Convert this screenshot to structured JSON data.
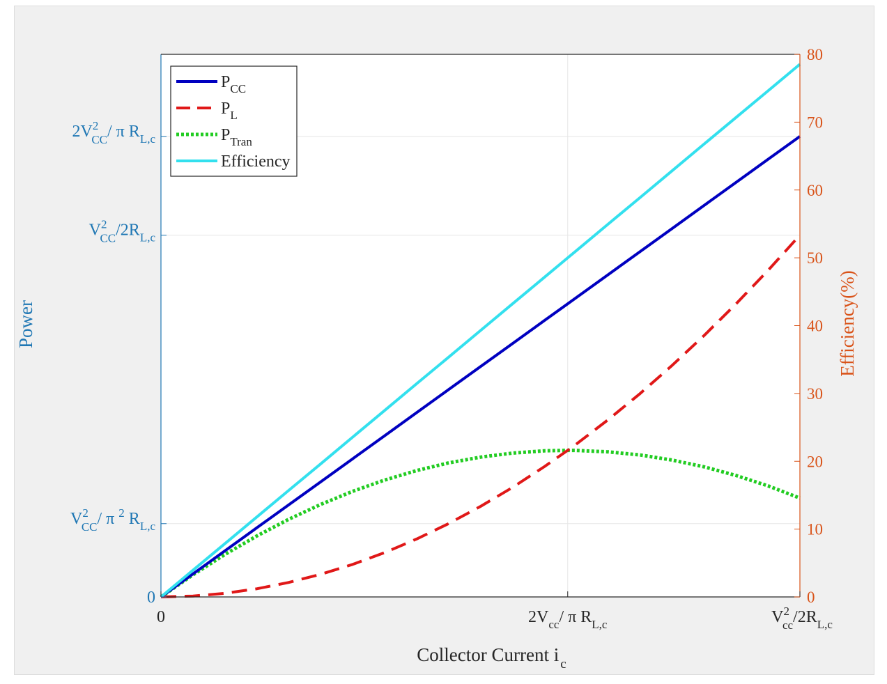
{
  "chart_data": {
    "type": "line",
    "title": "",
    "xlabel": "Collector Current i",
    "xlabel_sub": "c",
    "ylabel_left": "Power",
    "ylabel_right": "Efficiency(%)",
    "xlim": [
      0,
      1
    ],
    "ylim_left": [
      0,
      1
    ],
    "ylim_right": [
      0,
      80
    ],
    "grid": true,
    "legend_position": "top-left",
    "colors": {
      "left_axis": "#1f77b4",
      "right_axis": "#d95319",
      "pcc": "#0000c0",
      "pl": "#e01818",
      "ptran": "#22cc22",
      "efficiency": "#33e0ee"
    },
    "x_ticks": [
      {
        "x": 0,
        "main": "0",
        "sub": ""
      },
      {
        "x": 0.6366,
        "main": "2V",
        "sub": "cc",
        "tail": "/ π R",
        "sub2": "L,c"
      },
      {
        "x": 1,
        "main": "V",
        "sup": "2",
        "sub": "cc",
        "tail": "/2R",
        "sub2": "L,c"
      }
    ],
    "y_left_ticks": [
      {
        "y": 0,
        "main": "0"
      },
      {
        "y": 0.1351,
        "main": "V",
        "sup": "2",
        "sub": "CC",
        "tail": "/ π ",
        "sup2": "2",
        "tail2": " R",
        "sub2": "L,c"
      },
      {
        "y": 0.6667,
        "main": "V",
        "sup": "2",
        "sub": "CC",
        "tail": "/2R",
        "sub2": "L,c"
      },
      {
        "y": 0.8488,
        "main": "2V",
        "sup": "2",
        "sub": "CC",
        "tail": "/ π R",
        "sub2": "L,c"
      }
    ],
    "y_right_ticks": [
      0,
      10,
      20,
      30,
      40,
      50,
      60,
      70,
      80
    ],
    "x": [
      0,
      0.05,
      0.1,
      0.15,
      0.2,
      0.25,
      0.3,
      0.35,
      0.4,
      0.45,
      0.5,
      0.55,
      0.6,
      0.6366,
      0.65,
      0.7,
      0.75,
      0.8,
      0.85,
      0.9,
      0.95,
      1.0
    ],
    "series": [
      {
        "name": "P",
        "sub": "CC",
        "axis": "left",
        "style": "solid",
        "values": [
          0,
          0.0424,
          0.0849,
          0.1273,
          0.1698,
          0.2122,
          0.2546,
          0.2971,
          0.3395,
          0.382,
          0.4244,
          0.4668,
          0.5093,
          0.5403,
          0.5517,
          0.5941,
          0.6366,
          0.679,
          0.7215,
          0.7639,
          0.8064,
          0.8488
        ]
      },
      {
        "name": "P",
        "sub": "L",
        "axis": "left",
        "style": "dashed",
        "values": [
          0,
          0.0017,
          0.0067,
          0.015,
          0.0267,
          0.0417,
          0.06,
          0.0817,
          0.1067,
          0.135,
          0.1667,
          0.2017,
          0.24,
          0.2702,
          0.2817,
          0.3267,
          0.375,
          0.4267,
          0.4817,
          0.54,
          0.6017,
          0.6667
        ]
      },
      {
        "name": "P",
        "sub": "Tran",
        "axis": "left",
        "style": "dotted",
        "values": [
          0,
          0.0407,
          0.0782,
          0.1123,
          0.1431,
          0.1705,
          0.1946,
          0.2154,
          0.2328,
          0.247,
          0.2577,
          0.2651,
          0.2693,
          0.2701,
          0.27,
          0.2674,
          0.2616,
          0.2523,
          0.2398,
          0.2239,
          0.2047,
          0.1821
        ]
      },
      {
        "name": "Efficiency",
        "sub": "",
        "axis": "right",
        "style": "solid",
        "values": [
          0,
          3.93,
          7.85,
          11.78,
          15.71,
          19.63,
          23.56,
          27.49,
          31.42,
          35.34,
          39.27,
          43.2,
          47.12,
          50.0,
          51.05,
          54.98,
          58.9,
          62.83,
          66.76,
          70.69,
          74.61,
          78.54
        ]
      }
    ]
  }
}
